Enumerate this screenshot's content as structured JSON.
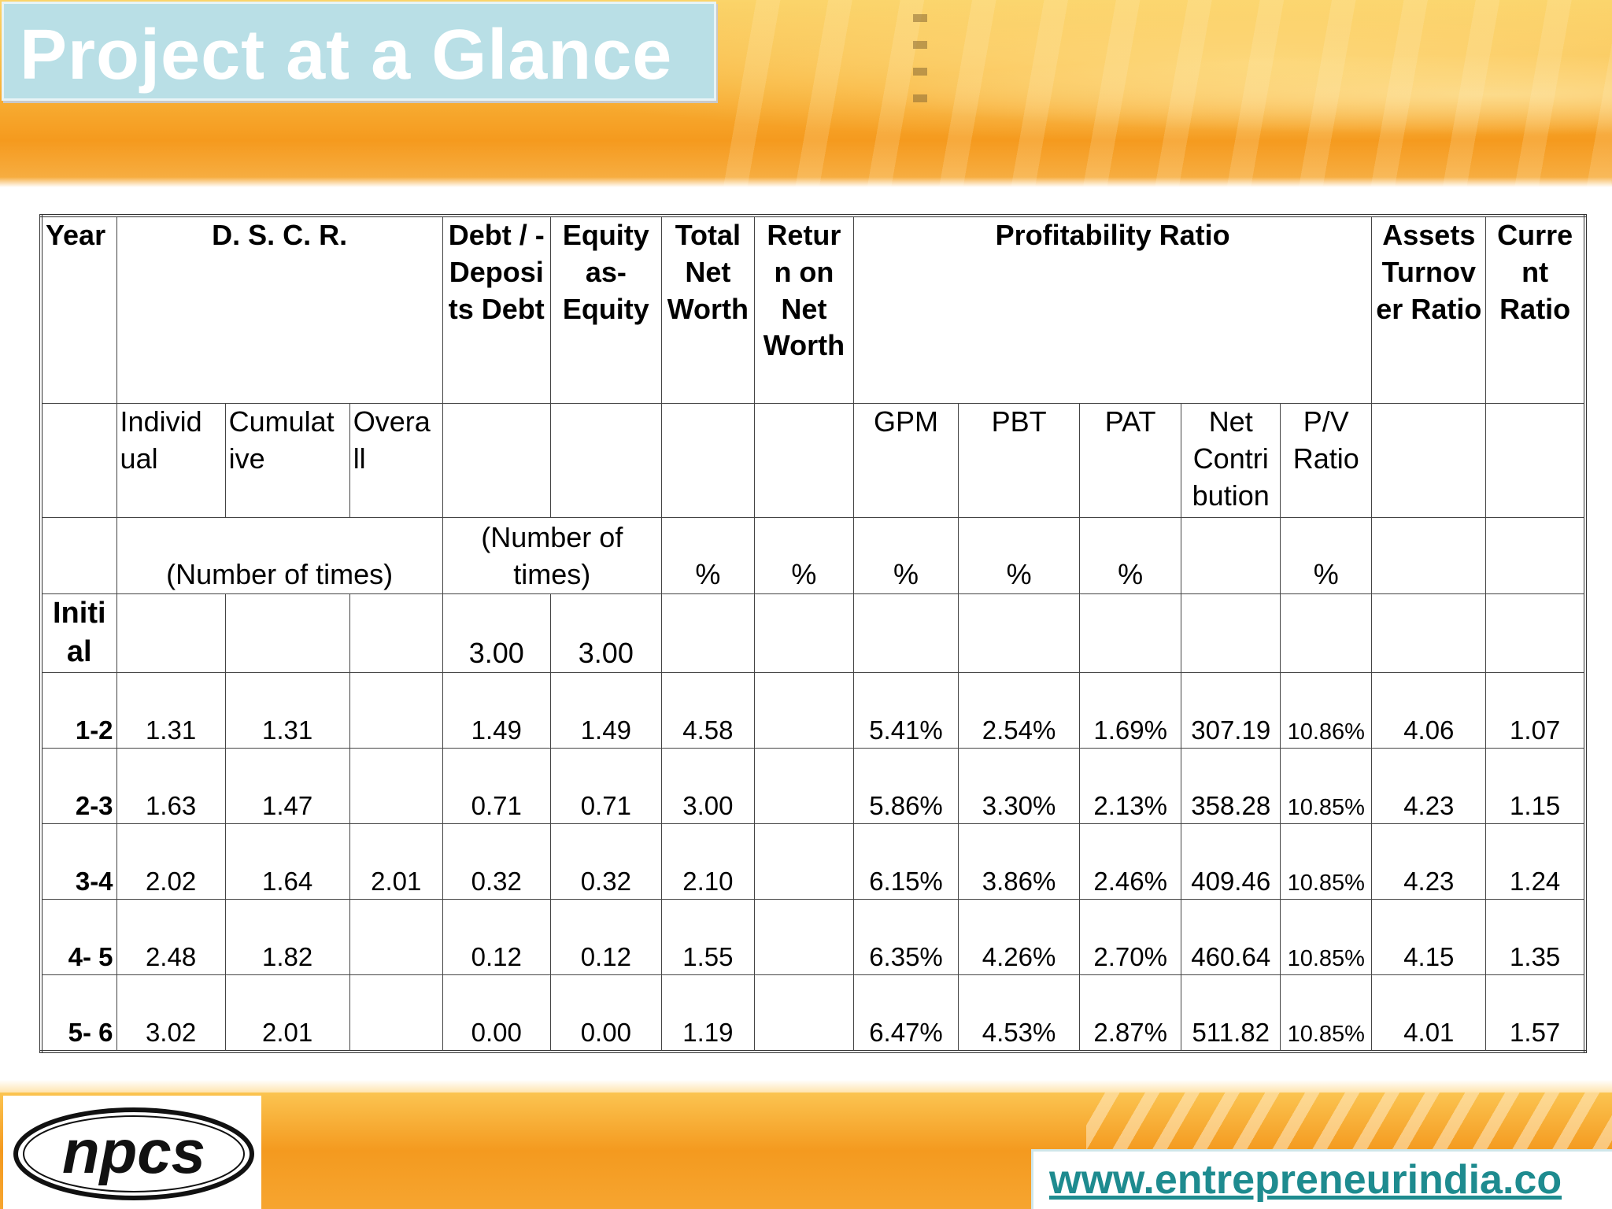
{
  "slide": {
    "title": "Project at a Glance",
    "logo_text": "npcs",
    "website": "www.entrepreneurindia.co"
  },
  "colors": {
    "title_box": "#b9dfe6",
    "banner_orange": "#f59a1e",
    "url_text": "#1e8b8f"
  },
  "table": {
    "headers": {
      "year": "Year",
      "dscr": "D. S. C. R.",
      "debt_deposits_debt": "Debt / - Deposi ts Debt",
      "equity_as_equity": "Equity as- Equity",
      "total_net_worth": "Total Net Worth",
      "return_on_net_worth": "Retur n on Net Worth",
      "profitability_ratio": "Profitability Ratio",
      "assets_turnover_ratio": "Assets Turnov er Ratio",
      "current_ratio": "Curre nt Ratio"
    },
    "subheaders": {
      "individual": "Individ ual",
      "cumulative": "Cumulat ive",
      "overall": "Overa ll",
      "gpm": "GPM",
      "pbt": "PBT",
      "pat": "PAT",
      "net_contribution": "Net Contri bution",
      "pv_ratio": "P/V Ratio"
    },
    "units": {
      "dscr": "(Number of times)",
      "debt_equity": "(Number of times)",
      "total_net_worth": "%",
      "return_on_net_worth": "%",
      "gpm": "%",
      "pbt": "%",
      "pat": "%",
      "pv_ratio": "%"
    },
    "initial": {
      "year": "Initi al",
      "debt": "3.00",
      "equity": "3.00"
    },
    "rows": [
      {
        "year": "1-2",
        "individual": "1.31",
        "cumulative": "1.31",
        "overall": "",
        "debt": "1.49",
        "equity": "1.49",
        "total_nw": "4.58",
        "ronw": "",
        "gpm": "5.41%",
        "pbt": "2.54%",
        "pat": "1.69%",
        "net_contrib": "307.19",
        "pv": "10.86%",
        "assets_turnover": "4.06",
        "current_ratio": "1.07"
      },
      {
        "year": "2-3",
        "individual": "1.63",
        "cumulative": "1.47",
        "overall": "",
        "debt": "0.71",
        "equity": "0.71",
        "total_nw": "3.00",
        "ronw": "",
        "gpm": "5.86%",
        "pbt": "3.30%",
        "pat": "2.13%",
        "net_contrib": "358.28",
        "pv": "10.85%",
        "assets_turnover": "4.23",
        "current_ratio": "1.15"
      },
      {
        "year": "3-4",
        "individual": "2.02",
        "cumulative": "1.64",
        "overall": "2.01",
        "debt": "0.32",
        "equity": "0.32",
        "total_nw": "2.10",
        "ronw": "",
        "gpm": "6.15%",
        "pbt": "3.86%",
        "pat": "2.46%",
        "net_contrib": "409.46",
        "pv": "10.85%",
        "assets_turnover": "4.23",
        "current_ratio": "1.24"
      },
      {
        "year": "4- 5",
        "individual": "2.48",
        "cumulative": "1.82",
        "overall": "",
        "debt": "0.12",
        "equity": "0.12",
        "total_nw": "1.55",
        "ronw": "",
        "gpm": "6.35%",
        "pbt": "4.26%",
        "pat": "2.70%",
        "net_contrib": "460.64",
        "pv": "10.85%",
        "assets_turnover": "4.15",
        "current_ratio": "1.35"
      },
      {
        "year": "5- 6",
        "individual": "3.02",
        "cumulative": "2.01",
        "overall": "",
        "debt": "0.00",
        "equity": "0.00",
        "total_nw": "1.19",
        "ronw": "",
        "gpm": "6.47%",
        "pbt": "4.53%",
        "pat": "2.87%",
        "net_contrib": "511.82",
        "pv": "10.85%",
        "assets_turnover": "4.01",
        "current_ratio": "1.57"
      }
    ]
  }
}
